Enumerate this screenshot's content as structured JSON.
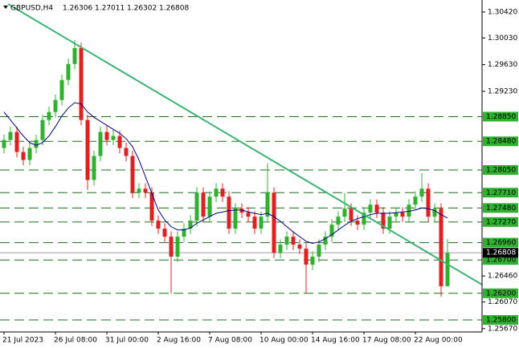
{
  "chart_data": {
    "type": "candlestick",
    "symbol": "GBPUSD,H4",
    "categories": [
      "21 Jul 2023",
      null,
      null,
      null,
      null,
      null,
      null,
      null,
      "26 Jul 08:00",
      null,
      null,
      null,
      null,
      null,
      null,
      null,
      "31 Jul 00:00",
      null,
      null,
      null,
      null,
      null,
      null,
      null,
      "2 Aug 16:00",
      null,
      null,
      null,
      null,
      null,
      null,
      null,
      "7 Aug 08:00",
      null,
      null,
      null,
      null,
      null,
      null,
      null,
      "10 Aug 00:00",
      null,
      null,
      null,
      null,
      null,
      null,
      null,
      "14 Aug 16:00",
      null,
      null,
      null,
      null,
      null,
      null,
      null,
      "17 Aug 08:00",
      null,
      null,
      null,
      null,
      null,
      null,
      null,
      "22 Aug 00:00",
      null,
      null,
      null,
      null,
      null
    ],
    "open": [
      1.2838,
      1.285,
      1.2862,
      1.2832,
      1.282,
      1.2838,
      1.285,
      1.288,
      1.2892,
      1.291,
      1.294,
      1.2964,
      1.2988,
      1.288,
      1.279,
      1.2826,
      1.2862,
      1.285,
      1.2856,
      1.2838,
      1.2826,
      1.2771,
      1.2777,
      1.2771,
      1.2729,
      1.2717,
      1.2705,
      1.2675,
      1.2705,
      1.2717,
      1.2729,
      1.2771,
      1.2735,
      1.2765,
      1.2777,
      1.2765,
      1.2717,
      1.2747,
      1.2741,
      1.2735,
      1.2717,
      1.2735,
      1.2771,
      1.2681,
      1.2693,
      1.2705,
      1.2693,
      1.2687,
      1.2663,
      1.2675,
      1.2693,
      1.2705,
      1.2723,
      1.2735,
      1.2747,
      1.2729,
      1.2723,
      1.2741,
      1.2753,
      1.2741,
      1.2717,
      1.2735,
      1.2741,
      1.2735,
      1.2753,
      1.2765,
      1.2777,
      1.2735,
      1.2747,
      1.26306
    ],
    "high": [
      1.2858,
      1.287,
      1.287,
      1.284,
      1.2846,
      1.2858,
      1.2888,
      1.29,
      1.2918,
      1.2948,
      1.2972,
      1.3,
      1.2996,
      1.2888,
      1.2834,
      1.287,
      1.2872,
      1.2866,
      1.2864,
      1.2846,
      1.2834,
      1.2785,
      1.2785,
      1.2779,
      1.2737,
      1.2725,
      1.2713,
      1.2713,
      1.2725,
      1.2737,
      1.2779,
      1.2779,
      1.2773,
      1.2785,
      1.2785,
      1.2773,
      1.2755,
      1.2755,
      1.2749,
      1.2743,
      1.2743,
      1.2815,
      1.2779,
      1.2701,
      1.2713,
      1.2713,
      1.2701,
      1.2695,
      1.2683,
      1.2701,
      1.2713,
      1.2731,
      1.2743,
      1.277,
      1.2755,
      1.2737,
      1.2749,
      1.2761,
      1.2761,
      1.2749,
      1.2743,
      1.2749,
      1.2749,
      1.2761,
      1.2773,
      1.28,
      1.2785,
      1.2755,
      1.2755,
      1.27011
    ],
    "low": [
      1.283,
      1.2842,
      1.2824,
      1.2812,
      1.2812,
      1.283,
      1.2842,
      1.2872,
      1.2884,
      1.2902,
      1.2932,
      1.2956,
      1.2872,
      1.2775,
      1.2782,
      1.2818,
      1.2842,
      1.2842,
      1.283,
      1.2818,
      1.2763,
      1.2763,
      1.2763,
      1.2721,
      1.2709,
      1.2697,
      1.262,
      1.2667,
      1.2697,
      1.2709,
      1.2721,
      1.2727,
      1.2727,
      1.2757,
      1.2757,
      1.2709,
      1.2709,
      1.2733,
      1.2727,
      1.2709,
      1.2709,
      1.2727,
      1.2673,
      1.2673,
      1.2685,
      1.2685,
      1.2679,
      1.262,
      1.2655,
      1.2667,
      1.2685,
      1.2697,
      1.2715,
      1.2727,
      1.2721,
      1.2715,
      1.2715,
      1.2733,
      1.2733,
      1.2709,
      1.2709,
      1.2727,
      1.2727,
      1.2727,
      1.2745,
      1.2757,
      1.2727,
      1.2727,
      1.2615,
      1.26302
    ],
    "close": [
      1.285,
      1.2862,
      1.2832,
      1.282,
      1.2838,
      1.285,
      1.288,
      1.2892,
      1.291,
      1.294,
      1.2964,
      1.2988,
      1.288,
      1.279,
      1.2826,
      1.2862,
      1.285,
      1.2856,
      1.2838,
      1.2826,
      1.2771,
      1.2777,
      1.2771,
      1.2729,
      1.2717,
      1.2705,
      1.2675,
      1.2705,
      1.2717,
      1.2729,
      1.2771,
      1.2735,
      1.2765,
      1.2777,
      1.2765,
      1.2717,
      1.2747,
      1.2741,
      1.2735,
      1.2717,
      1.2735,
      1.2771,
      1.2681,
      1.2693,
      1.2705,
      1.2693,
      1.2687,
      1.2663,
      1.2675,
      1.2693,
      1.2705,
      1.2723,
      1.2735,
      1.2747,
      1.2729,
      1.2723,
      1.2741,
      1.2753,
      1.2741,
      1.2717,
      1.2735,
      1.2741,
      1.2735,
      1.2753,
      1.2765,
      1.2777,
      1.2735,
      1.2747,
      1.26306,
      1.26808
    ],
    "ma": [
      1.2892,
      1.288,
      1.2868,
      1.2856,
      1.2846,
      1.2842,
      1.2846,
      1.2856,
      1.287,
      1.2886,
      1.2898,
      1.2906,
      1.2904,
      1.2892,
      1.2884,
      1.2878,
      1.2872,
      1.2866,
      1.286,
      1.2852,
      1.284,
      1.282,
      1.2795,
      1.277,
      1.2745,
      1.273,
      1.272,
      1.2715,
      1.2715,
      1.2718,
      1.2725,
      1.273,
      1.2735,
      1.274,
      1.2742,
      1.2744,
      1.2745,
      1.2745,
      1.2742,
      1.274,
      1.2738,
      1.274,
      1.2735,
      1.2728,
      1.272,
      1.2712,
      1.2705,
      1.2698,
      1.2695,
      1.2697,
      1.2702,
      1.2708,
      1.2715,
      1.2722,
      1.2728,
      1.2732,
      1.2735,
      1.2738,
      1.274,
      1.274,
      1.274,
      1.2741,
      1.2742,
      1.2743,
      1.2745,
      1.2748,
      1.2747,
      1.2744,
      1.2738,
      1.2733
    ],
    "bull_color": "#2fb12f",
    "bear_color": "#e02020",
    "ma_color": "#000080",
    "ylim": [
      1.2562,
      1.306
    ],
    "yticks": [
      {
        "value": 1.3042,
        "label": "1.30420"
      },
      {
        "value": 1.3003,
        "label": "1.30030"
      },
      {
        "value": 1.2963,
        "label": "1.29630"
      },
      {
        "value": 1.2923,
        "label": "1.29230"
      },
      {
        "value": 1.2646,
        "label": "1.26460"
      },
      {
        "value": 1.2607,
        "label": "1.26070"
      },
      {
        "value": 1.2567,
        "label": "1.25670"
      }
    ],
    "levels": [
      {
        "value": 1.2885,
        "label": "1.28850"
      },
      {
        "value": 1.2848,
        "label": "1.28480"
      },
      {
        "value": 1.2805,
        "label": "1.28050"
      },
      {
        "value": 1.2771,
        "label": "1.27710"
      },
      {
        "value": 1.2748,
        "label": "1.27480"
      },
      {
        "value": 1.2727,
        "label": "1.27270"
      },
      {
        "value": 1.2696,
        "label": "1.26960"
      },
      {
        "value": 1.267,
        "label": "1.26700"
      },
      {
        "value": 1.262,
        "label": "1.26200"
      },
      {
        "value": 1.258,
        "label": "1.25800"
      }
    ],
    "current": {
      "value": 1.26808,
      "label": "1.26808"
    }
  }
}
